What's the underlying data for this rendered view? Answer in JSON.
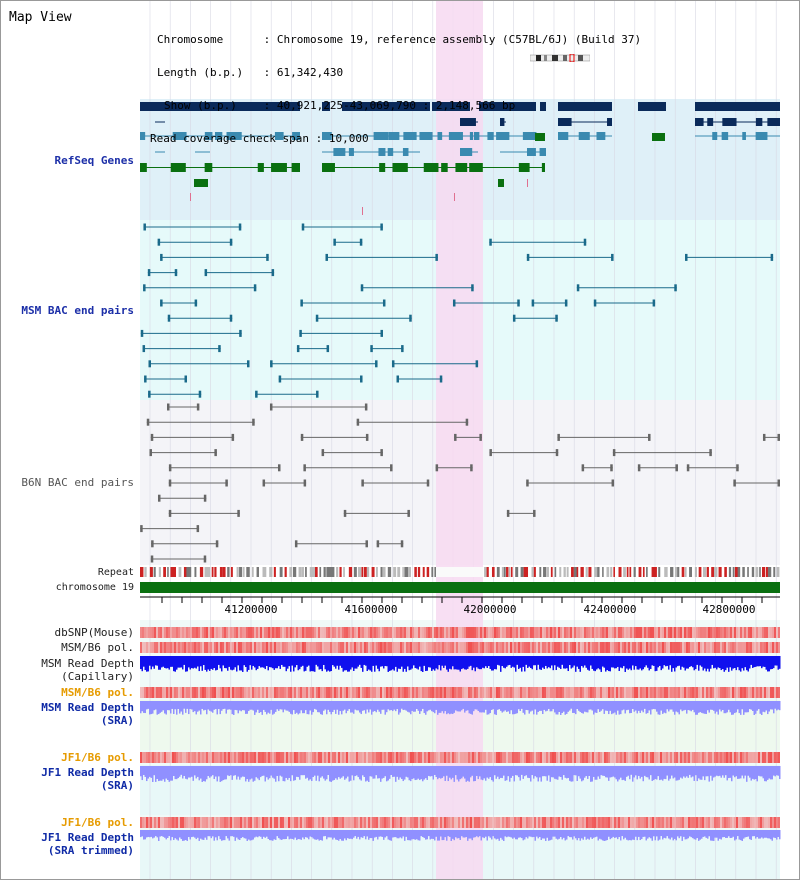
{
  "page": {
    "title": "Map View"
  },
  "header": {
    "chromosome_label": "Chromosome",
    "chromosome_value": "Chromosome 19, reference assembly (C57BL/6J) (Build 37)",
    "length_label": "Length (b.p.)",
    "length_value": "61,342,430",
    "show_label": "Show (b.p.)",
    "show_value": "40,921,225-43,069,790 : 2,148,566 bp",
    "coverage_label": "Read coverage check span",
    "coverage_value": "10,000"
  },
  "tracks": {
    "refseq": "RefSeq Genes",
    "msm_bac": "MSM BAC end pairs",
    "b6n_bac": "B6N BAC end pairs",
    "repeat": "Repeat",
    "chromosome": "chromosome 19",
    "dbsnp": "dbSNP(Mouse)",
    "msm_b6_pol_1": "MSM/B6 pol.",
    "msm_read_depth_cap_1": "MSM Read Depth",
    "msm_read_depth_cap_2": "(Capillary)",
    "msm_b6_pol_2": "MSM/B6 pol.",
    "msm_read_depth_sra_1": "MSM Read Depth",
    "msm_read_depth_sra_2": "(SRA)",
    "jf1_b6_pol_1": "JF1/B6 pol.",
    "jf1_read_depth_sra_1": "JF1 Read Depth",
    "jf1_read_depth_sra_2": "(SRA)",
    "jf1_b6_pol_2": "JF1/B6 pol.",
    "jf1_read_depth_trim_1": "JF1 Read Depth",
    "jf1_read_depth_trim_2": "(SRA trimmed)"
  },
  "axis": {
    "ticks": [
      "41200000",
      "41600000",
      "42000000",
      "42400000",
      "42800000"
    ]
  },
  "colors": {
    "refseq_bg": "#dff0f8",
    "msm_bg": "#e6fafa",
    "b6n_bg": "#f4f4f8",
    "highlight": "#f7d9f1",
    "gene_navy": "#0a2a5a",
    "gene_teal": "#3a8ab0",
    "gene_green": "#0a7010",
    "msm_line": "#1a6a8a",
    "b6n_line": "#666666",
    "depth_blue": "#1010ee",
    "depth_lilac": "#9090ff",
    "pol_red": "#ee4444"
  }
}
